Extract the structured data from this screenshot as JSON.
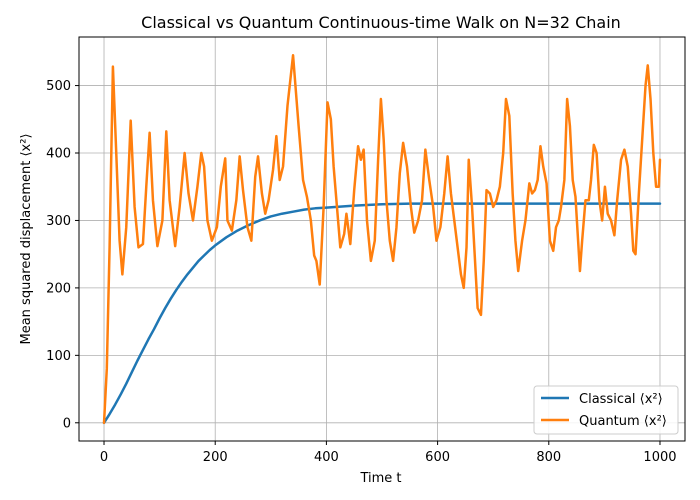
{
  "chart_data": {
    "type": "line",
    "title": "Classical vs Quantum Continuous-time Walk on N=32 Chain",
    "xlabel": "Time t",
    "ylabel": "Mean squared displacement ⟨x²⟩",
    "xlim": [
      -45,
      1045
    ],
    "ylim": [
      -27,
      572
    ],
    "x_ticks": [
      0,
      200,
      400,
      600,
      800,
      1000
    ],
    "y_ticks": [
      0,
      100,
      200,
      300,
      400,
      500
    ],
    "grid": true,
    "legend_position": "lower-right",
    "series": [
      {
        "name": "Classical ⟨x²⟩",
        "color": "#1f77b4",
        "points": [
          [
            0,
            0
          ],
          [
            10,
            13
          ],
          [
            20,
            27
          ],
          [
            30,
            42
          ],
          [
            40,
            58
          ],
          [
            50,
            75
          ],
          [
            60,
            92
          ],
          [
            70,
            108
          ],
          [
            80,
            124
          ],
          [
            90,
            139
          ],
          [
            100,
            155
          ],
          [
            110,
            170
          ],
          [
            120,
            184
          ],
          [
            130,
            197
          ],
          [
            140,
            209
          ],
          [
            150,
            220
          ],
          [
            160,
            230
          ],
          [
            170,
            240
          ],
          [
            180,
            248
          ],
          [
            190,
            256
          ],
          [
            200,
            263
          ],
          [
            220,
            275
          ],
          [
            240,
            285
          ],
          [
            260,
            293
          ],
          [
            280,
            300
          ],
          [
            300,
            306
          ],
          [
            320,
            310
          ],
          [
            340,
            313
          ],
          [
            360,
            316
          ],
          [
            380,
            318
          ],
          [
            400,
            319
          ],
          [
            450,
            322
          ],
          [
            500,
            324
          ],
          [
            550,
            325
          ],
          [
            600,
            325
          ],
          [
            700,
            325
          ],
          [
            800,
            325
          ],
          [
            900,
            325
          ],
          [
            1000,
            325
          ]
        ]
      },
      {
        "name": "Quantum ⟨x²⟩",
        "color": "#ff7f0e",
        "points": [
          [
            0,
            0
          ],
          [
            5,
            80
          ],
          [
            10,
            260
          ],
          [
            16,
            528
          ],
          [
            22,
            400
          ],
          [
            28,
            270
          ],
          [
            33,
            220
          ],
          [
            40,
            290
          ],
          [
            48,
            448
          ],
          [
            55,
            320
          ],
          [
            62,
            260
          ],
          [
            70,
            265
          ],
          [
            76,
            350
          ],
          [
            82,
            430
          ],
          [
            88,
            330
          ],
          [
            96,
            262
          ],
          [
            105,
            300
          ],
          [
            112,
            432
          ],
          [
            118,
            330
          ],
          [
            128,
            262
          ],
          [
            136,
            320
          ],
          [
            145,
            400
          ],
          [
            152,
            340
          ],
          [
            160,
            300
          ],
          [
            168,
            350
          ],
          [
            175,
            400
          ],
          [
            180,
            380
          ],
          [
            186,
            300
          ],
          [
            194,
            270
          ],
          [
            203,
            290
          ],
          [
            210,
            350
          ],
          [
            218,
            392
          ],
          [
            222,
            300
          ],
          [
            230,
            285
          ],
          [
            238,
            330
          ],
          [
            244,
            395
          ],
          [
            250,
            345
          ],
          [
            258,
            290
          ],
          [
            265,
            270
          ],
          [
            272,
            365
          ],
          [
            277,
            395
          ],
          [
            284,
            340
          ],
          [
            290,
            310
          ],
          [
            296,
            330
          ],
          [
            304,
            375
          ],
          [
            310,
            425
          ],
          [
            316,
            360
          ],
          [
            322,
            380
          ],
          [
            330,
            470
          ],
          [
            340,
            545
          ],
          [
            350,
            440
          ],
          [
            358,
            360
          ],
          [
            365,
            335
          ],
          [
            372,
            300
          ],
          [
            378,
            248
          ],
          [
            382,
            240
          ],
          [
            388,
            205
          ],
          [
            395,
            320
          ],
          [
            402,
            475
          ],
          [
            408,
            450
          ],
          [
            413,
            380
          ],
          [
            418,
            330
          ],
          [
            425,
            260
          ],
          [
            432,
            280
          ],
          [
            436,
            310
          ],
          [
            443,
            265
          ],
          [
            450,
            345
          ],
          [
            457,
            410
          ],
          [
            462,
            390
          ],
          [
            467,
            405
          ],
          [
            473,
            300
          ],
          [
            480,
            240
          ],
          [
            487,
            270
          ],
          [
            493,
            390
          ],
          [
            498,
            480
          ],
          [
            503,
            420
          ],
          [
            508,
            330
          ],
          [
            514,
            270
          ],
          [
            520,
            240
          ],
          [
            526,
            290
          ],
          [
            532,
            370
          ],
          [
            538,
            415
          ],
          [
            545,
            380
          ],
          [
            552,
            320
          ],
          [
            558,
            282
          ],
          [
            565,
            300
          ],
          [
            572,
            330
          ],
          [
            578,
            405
          ],
          [
            585,
            360
          ],
          [
            592,
            320
          ],
          [
            598,
            270
          ],
          [
            605,
            290
          ],
          [
            612,
            340
          ],
          [
            618,
            395
          ],
          [
            624,
            340
          ],
          [
            630,
            300
          ],
          [
            636,
            260
          ],
          [
            642,
            220
          ],
          [
            647,
            200
          ],
          [
            652,
            260
          ],
          [
            656,
            390
          ],
          [
            662,
            320
          ],
          [
            667,
            245
          ],
          [
            672,
            170
          ],
          [
            678,
            160
          ],
          [
            683,
            240
          ],
          [
            688,
            345
          ],
          [
            694,
            340
          ],
          [
            700,
            320
          ],
          [
            706,
            330
          ],
          [
            712,
            350
          ],
          [
            718,
            400
          ],
          [
            723,
            480
          ],
          [
            729,
            455
          ],
          [
            735,
            340
          ],
          [
            740,
            270
          ],
          [
            745,
            225
          ],
          [
            752,
            270
          ],
          [
            758,
            300
          ],
          [
            765,
            355
          ],
          [
            770,
            340
          ],
          [
            775,
            345
          ],
          [
            780,
            360
          ],
          [
            785,
            410
          ],
          [
            790,
            380
          ],
          [
            796,
            355
          ],
          [
            802,
            270
          ],
          [
            808,
            255
          ],
          [
            813,
            290
          ],
          [
            818,
            300
          ],
          [
            822,
            320
          ],
          [
            828,
            360
          ],
          [
            833,
            480
          ],
          [
            838,
            440
          ],
          [
            843,
            360
          ],
          [
            848,
            335
          ],
          [
            852,
            280
          ],
          [
            856,
            225
          ],
          [
            860,
            270
          ],
          [
            866,
            330
          ],
          [
            872,
            330
          ],
          [
            876,
            360
          ],
          [
            881,
            412
          ],
          [
            886,
            400
          ],
          [
            891,
            330
          ],
          [
            896,
            300
          ],
          [
            901,
            350
          ],
          [
            906,
            310
          ],
          [
            912,
            300
          ],
          [
            918,
            278
          ],
          [
            923,
            330
          ],
          [
            930,
            390
          ],
          [
            936,
            405
          ],
          [
            942,
            380
          ],
          [
            948,
            310
          ],
          [
            952,
            255
          ],
          [
            956,
            250
          ],
          [
            962,
            340
          ],
          [
            968,
            420
          ],
          [
            974,
            500
          ],
          [
            978,
            530
          ],
          [
            983,
            480
          ],
          [
            988,
            400
          ],
          [
            993,
            350
          ],
          [
            998,
            350
          ],
          [
            1000,
            390
          ]
        ]
      }
    ]
  }
}
